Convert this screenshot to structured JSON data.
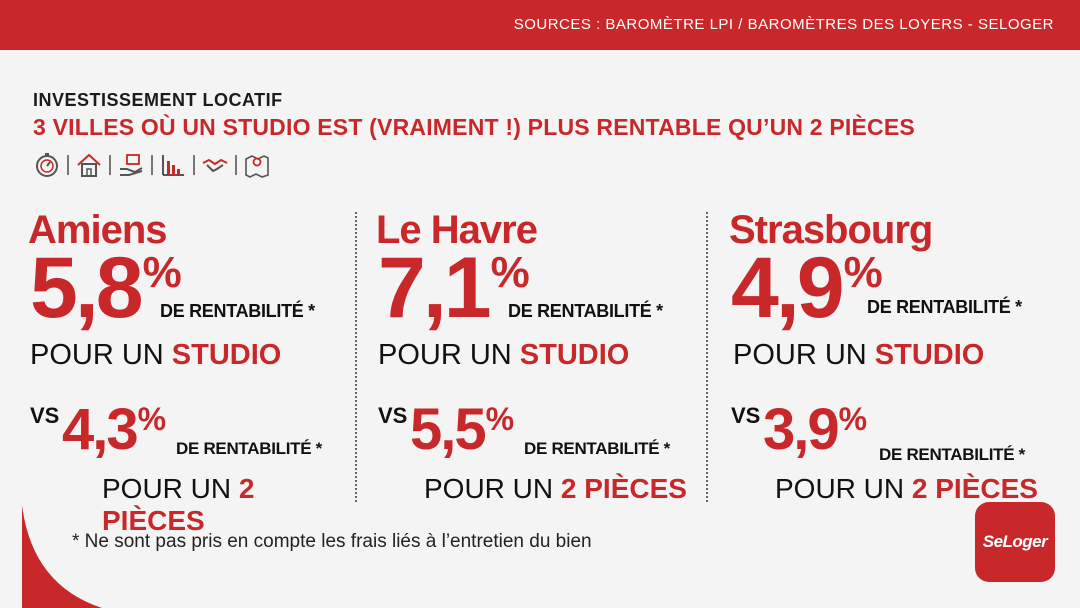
{
  "header": {
    "sources": "SOURCES : BAROMÈTRE LPI / BAROMÈTRES DES LOYERS - SELOGER"
  },
  "overline": "INVESTISSEMENT LOCATIF",
  "headline": "3 VILLES OÙ UN STUDIO EST (VRAIMENT !) PLUS RENTABLE QU’UN 2 PIÈCES",
  "icons": [
    "stopwatch-icon",
    "house-icon",
    "hand-money-icon",
    "bar-chart-icon",
    "handshake-icon",
    "map-pin-icon"
  ],
  "colors": {
    "accent": "#c8282a",
    "background": "#f4f4f4"
  },
  "cities": [
    {
      "name": "Amiens",
      "studio_value": "5,8",
      "two_rooms_value": "4,3"
    },
    {
      "name": "Le Havre",
      "studio_value": "7,1",
      "two_rooms_value": "5,5"
    },
    {
      "name": "Strasbourg",
      "studio_value": "4,9",
      "two_rooms_value": "3,9"
    }
  ],
  "labels": {
    "percent": "%",
    "rentabilite": "DE RENTABILITÉ *",
    "pour_un": "POUR UN ",
    "studio": "STUDIO",
    "vs": "VS",
    "deux_pieces": "2 PIÈCES"
  },
  "footnote": "* Ne sont pas pris en compte les frais liés à l’entretien du bien",
  "logo": "SeLoger"
}
